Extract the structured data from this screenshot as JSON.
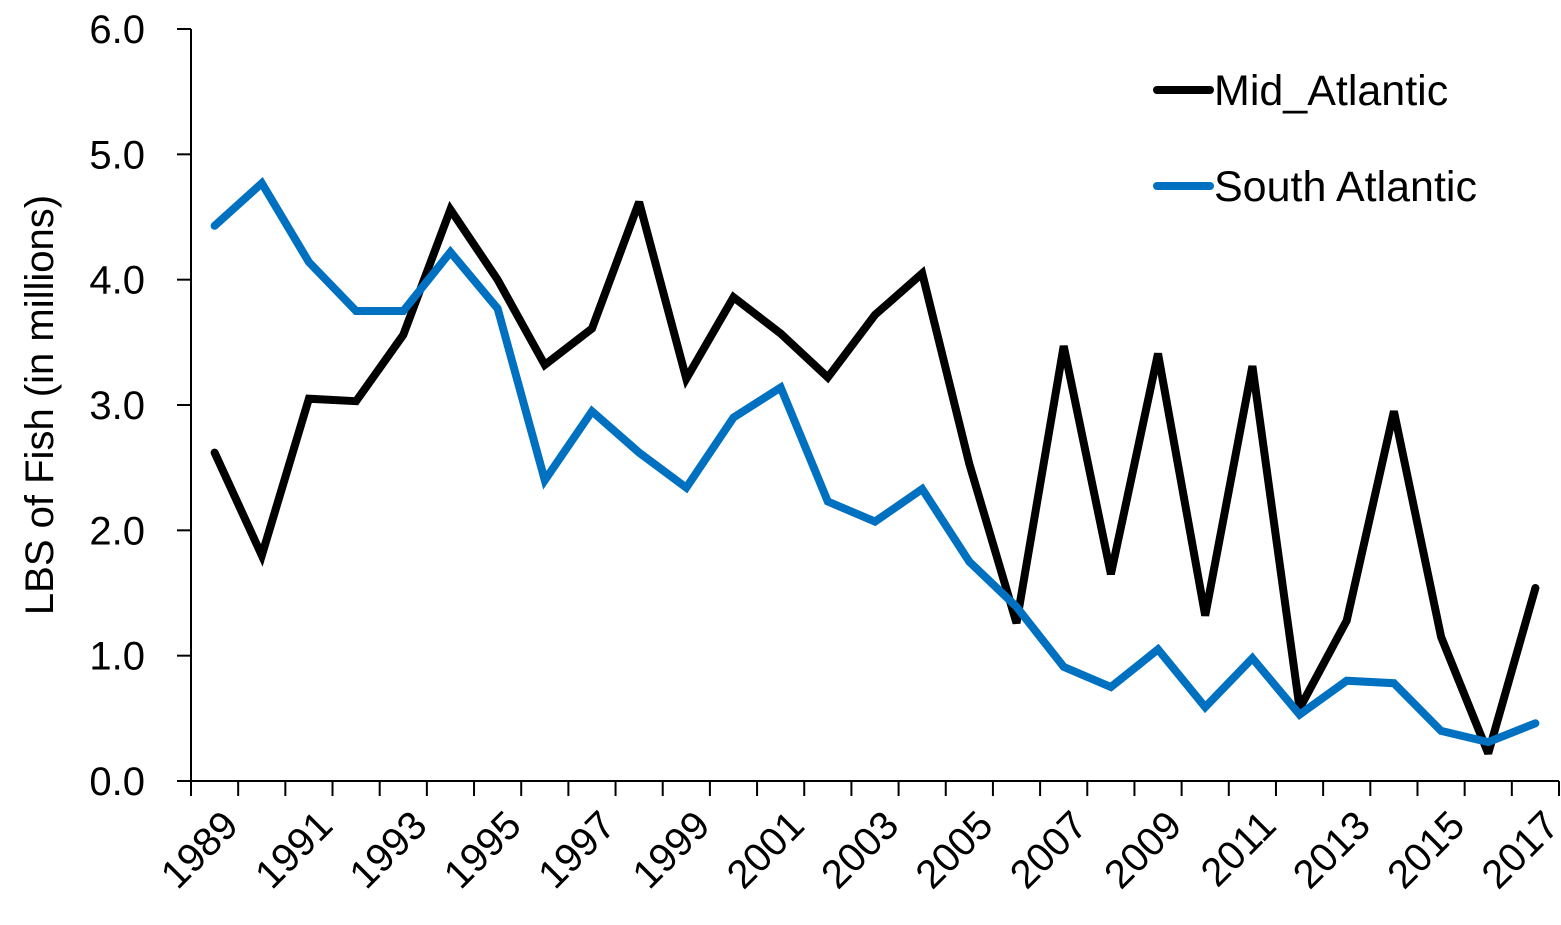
{
  "chart_data": {
    "type": "line",
    "title": "",
    "xlabel": "",
    "ylabel": "LBS of Fish (in millions)",
    "ylim": [
      0,
      6
    ],
    "yticks": [
      "0.0",
      "1.0",
      "2.0",
      "3.0",
      "4.0",
      "5.0",
      "6.0"
    ],
    "xtick_labels": [
      "1989",
      "1991",
      "1993",
      "1995",
      "1997",
      "1999",
      "2001",
      "2003",
      "2005",
      "2007",
      "2009",
      "2011",
      "2013",
      "2015",
      "2017"
    ],
    "grid": false,
    "legend_position": "top-right",
    "x": [
      1989,
      1990,
      1991,
      1992,
      1993,
      1994,
      1995,
      1996,
      1997,
      1998,
      1999,
      2000,
      2001,
      2002,
      2003,
      2004,
      2005,
      2006,
      2007,
      2008,
      2009,
      2010,
      2011,
      2012,
      2013,
      2014,
      2015,
      2016,
      2017
    ],
    "series": [
      {
        "name": "Mid_Atlantic",
        "color": "#000000",
        "values": [
          2.62,
          1.8,
          3.05,
          3.03,
          3.56,
          4.56,
          4.0,
          3.32,
          3.61,
          4.62,
          3.21,
          3.86,
          3.57,
          3.22,
          3.72,
          4.05,
          2.53,
          1.26,
          3.47,
          1.65,
          3.41,
          1.32,
          3.31,
          0.58,
          1.28,
          2.95,
          1.15,
          0.22,
          1.54
        ]
      },
      {
        "name": "South Atlantic",
        "color": "#0070C0",
        "values": [
          4.43,
          4.77,
          4.14,
          3.75,
          3.75,
          4.22,
          3.77,
          2.4,
          2.95,
          2.62,
          2.34,
          2.9,
          3.14,
          2.23,
          2.07,
          2.33,
          1.75,
          1.39,
          0.91,
          0.75,
          1.05,
          0.59,
          0.98,
          0.53,
          0.8,
          0.78,
          0.4,
          0.31,
          0.46
        ]
      }
    ]
  }
}
